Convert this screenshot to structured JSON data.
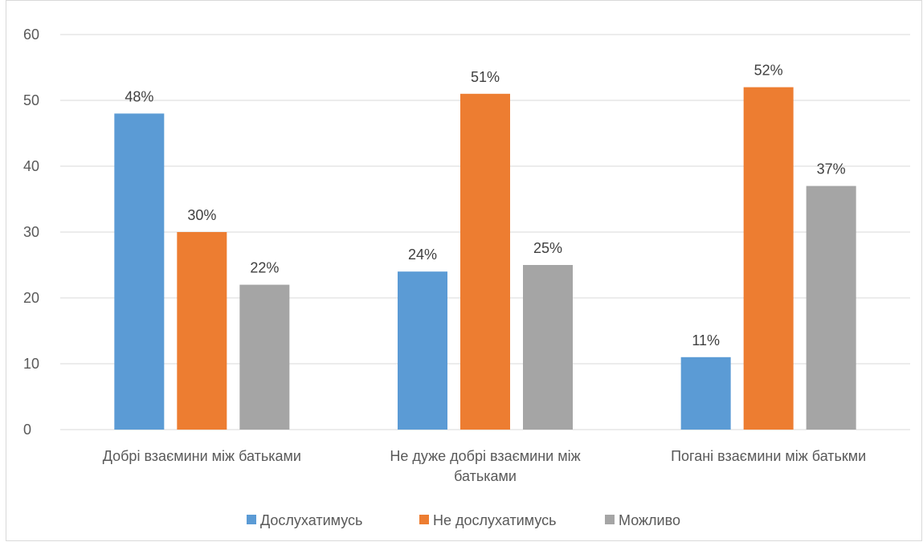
{
  "chart_data": {
    "type": "bar",
    "title": "",
    "xlabel": "",
    "ylabel": "",
    "ylim": [
      0,
      60
    ],
    "yticks": [
      0,
      10,
      20,
      30,
      40,
      50,
      60
    ],
    "grid": true,
    "legend_position": "bottom",
    "categories": [
      [
        "Добрі взаємини між батьками"
      ],
      [
        "Не дуже добрі взаємини між",
        "батьками"
      ],
      [
        "Погані взаємини між батькми"
      ]
    ],
    "series": [
      {
        "name": "Дослухатимусь",
        "color": "#5b9bd5",
        "values": [
          48,
          24,
          11
        ],
        "labels": [
          "48%",
          "24%",
          "11%"
        ]
      },
      {
        "name": "Не дослухатимусь",
        "color": "#ed7d31",
        "values": [
          30,
          51,
          52
        ],
        "labels": [
          "30%",
          "51%",
          "52%"
        ]
      },
      {
        "name": "Можливо",
        "color": "#a5a5a5",
        "values": [
          22,
          25,
          37
        ],
        "labels": [
          "22%",
          "25%",
          "37%"
        ]
      }
    ]
  }
}
